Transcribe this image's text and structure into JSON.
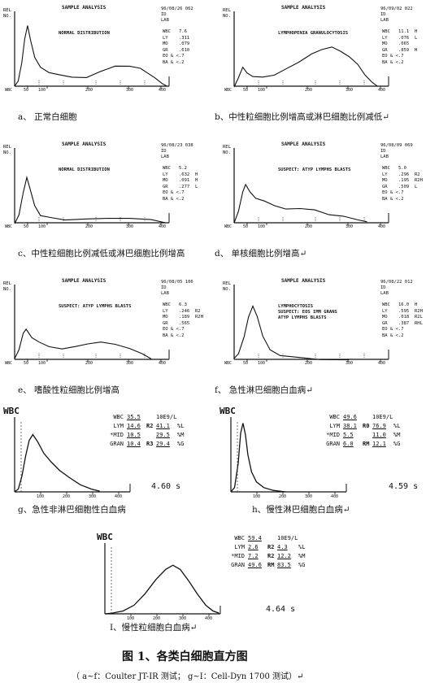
{
  "figure_title": "图 1、各类白细胞直方图",
  "note": "（ a~f：Coulter JT-IR 测试；  g~I：Cell-Dyn 1700 测试）↵",
  "coulter": [
    {
      "id": "a",
      "caption": "a、 正常白细胞",
      "title": "SAMPLE ANALYSIS",
      "date": "96/08/26 062",
      "header": [
        "REL",
        "NO."
      ],
      "idlab": [
        "ID",
        "LAB"
      ],
      "msg": [
        "NORMAL DISTRIBUTION"
      ],
      "params": [
        [
          "WBC",
          "7.6",
          ""
        ],
        [
          "LY",
          ".311",
          ""
        ],
        [
          "MO",
          ".079",
          ""
        ],
        [
          "GR",
          ".610",
          ""
        ],
        [
          "EO & <",
          ".7",
          ""
        ],
        [
          "BA & <",
          ".2",
          ""
        ]
      ],
      "ticks": [
        "WBC",
        "50",
        "100",
        "200",
        "300",
        "400"
      ],
      "curve": [
        [
          0,
          0
        ],
        [
          5,
          8
        ],
        [
          10,
          30
        ],
        [
          14,
          62
        ],
        [
          18,
          80
        ],
        [
          22,
          62
        ],
        [
          28,
          38
        ],
        [
          36,
          24
        ],
        [
          48,
          18
        ],
        [
          62,
          14
        ],
        [
          80,
          11
        ],
        [
          100,
          12
        ],
        [
          120,
          20
        ],
        [
          140,
          26
        ],
        [
          160,
          28
        ],
        [
          175,
          25
        ],
        [
          185,
          18
        ],
        [
          195,
          10
        ],
        [
          205,
          4
        ],
        [
          212,
          1
        ]
      ]
    },
    {
      "id": "b",
      "caption": "b、中性粒细胞比例增高或淋巴细胞比例减低↵",
      "title": "SAMPLE ANALYSIS",
      "date": "96/09/02 022",
      "header": [
        "REL",
        "NO."
      ],
      "idlab": [
        "ID",
        "LAB"
      ],
      "msg": [
        "LYMPHOPENIA GRANULOCYTOSIS"
      ],
      "params": [
        [
          "WBC",
          "11.1",
          "H"
        ],
        [
          "LY",
          ".076",
          "L"
        ],
        [
          "MO",
          ".065",
          ""
        ],
        [
          "GR",
          ".859",
          "H"
        ],
        [
          "EO & <",
          ".7",
          ""
        ],
        [
          "BA & <",
          ".2",
          ""
        ]
      ],
      "ticks": [
        "WBC",
        "50",
        "100",
        "200",
        "300",
        "400"
      ],
      "curve": [
        [
          0,
          0
        ],
        [
          6,
          10
        ],
        [
          12,
          26
        ],
        [
          18,
          18
        ],
        [
          26,
          14
        ],
        [
          40,
          12
        ],
        [
          56,
          16
        ],
        [
          72,
          22
        ],
        [
          90,
          32
        ],
        [
          108,
          44
        ],
        [
          122,
          50
        ],
        [
          136,
          52
        ],
        [
          148,
          48
        ],
        [
          160,
          40
        ],
        [
          172,
          28
        ],
        [
          182,
          16
        ],
        [
          192,
          6
        ],
        [
          200,
          1
        ]
      ]
    },
    {
      "id": "c",
      "caption": "c、中性粒细胞比例减低或淋巴细胞比例增高",
      "title": "SAMPLE ANALYSIS",
      "date": "96/08/23 038",
      "header": [
        "REL",
        "NO."
      ],
      "idlab": [
        "ID",
        "LAB"
      ],
      "msg": [
        "NORMAL DISTRIBUTION"
      ],
      "params": [
        [
          "WBC",
          "5.2",
          ""
        ],
        [
          "LY",
          ".632",
          "H"
        ],
        [
          "MO",
          ".091",
          "H"
        ],
        [
          "GR",
          ".277",
          "L"
        ],
        [
          "EO & <",
          ".7",
          ""
        ],
        [
          "BA & <",
          ".2",
          ""
        ]
      ],
      "ticks": [
        "WBC",
        "50",
        "100",
        "200",
        "300",
        "400"
      ],
      "curve": [
        [
          0,
          0
        ],
        [
          6,
          10
        ],
        [
          12,
          40
        ],
        [
          17,
          60
        ],
        [
          22,
          45
        ],
        [
          28,
          22
        ],
        [
          36,
          10
        ],
        [
          50,
          6
        ],
        [
          70,
          5
        ],
        [
          100,
          6
        ],
        [
          130,
          6
        ],
        [
          160,
          5
        ],
        [
          190,
          3
        ],
        [
          210,
          1
        ]
      ]
    },
    {
      "id": "d",
      "caption": "d、 单核细胞比例增高↵",
      "title": "SAMPLE ANALYSIS",
      "date": "96/08/09 069",
      "header": [
        "REL",
        "NO."
      ],
      "idlab": [
        "ID",
        "LAB"
      ],
      "msg": [
        "SUSPECT: ATYP LYMPHS BLASTS"
      ],
      "params": [
        [
          "WBC",
          "5.0",
          ""
        ],
        [
          "LY",
          ".296",
          "R2"
        ],
        [
          "MO",
          ".195",
          "R2H"
        ],
        [
          "GR",
          ".509",
          "L"
        ],
        [
          "EO & <",
          ".7",
          ""
        ],
        [
          "BA & <",
          ".2",
          ""
        ]
      ],
      "ticks": [
        "WBC",
        "50",
        "100",
        "200",
        "300",
        "400"
      ],
      "curve": [
        [
          0,
          0
        ],
        [
          6,
          16
        ],
        [
          12,
          40
        ],
        [
          16,
          50
        ],
        [
          22,
          42
        ],
        [
          30,
          32
        ],
        [
          42,
          28
        ],
        [
          56,
          22
        ],
        [
          72,
          18
        ],
        [
          92,
          20
        ],
        [
          112,
          16
        ],
        [
          132,
          12
        ],
        [
          152,
          8
        ],
        [
          172,
          4
        ],
        [
          185,
          1
        ]
      ]
    },
    {
      "id": "e",
      "caption": "e、 嗜酸性粒细胞比例增高",
      "title": "SAMPLE ANALYSIS",
      "date": "96/08/05 106",
      "header": [
        "REL",
        "NO."
      ],
      "idlab": [
        "ID",
        "LAB"
      ],
      "msg": [
        "SUSPECT: ATYP LYMPHS BLASTS"
      ],
      "params": [
        [
          "WBC",
          "6.3",
          ""
        ],
        [
          "LY",
          ".246",
          "R2"
        ],
        [
          "MO",
          ".189",
          "R2H"
        ],
        [
          "GR",
          ".565",
          ""
        ],
        [
          "EO & <",
          ".7",
          ""
        ],
        [
          "BA & <",
          ".2",
          ""
        ]
      ],
      "ticks": [
        "WBC",
        "50",
        "100",
        "200",
        "300",
        "400"
      ],
      "curve": [
        [
          0,
          0
        ],
        [
          6,
          14
        ],
        [
          12,
          34
        ],
        [
          16,
          40
        ],
        [
          24,
          30
        ],
        [
          34,
          22
        ],
        [
          48,
          16
        ],
        [
          66,
          14
        ],
        [
          84,
          18
        ],
        [
          102,
          22
        ],
        [
          120,
          24
        ],
        [
          140,
          20
        ],
        [
          160,
          14
        ],
        [
          178,
          6
        ],
        [
          190,
          1
        ]
      ]
    },
    {
      "id": "f",
      "caption": "f、 急性淋巴细胞白血病↵",
      "title": "SAMPLE ANALYSIS",
      "date": "96/08/22 012",
      "header": [
        "REL",
        "NO."
      ],
      "idlab": [
        "ID",
        "LAB"
      ],
      "msg": [
        "LYMPHOCYTOSIS",
        "SUSPECT: EOS IMM GRANS",
        "ATYP LYMPHS BLASTS"
      ],
      "params": [
        [
          "WBC",
          "16.0",
          "H"
        ],
        [
          "LY",
          ".595",
          "R2H"
        ],
        [
          "MO",
          ".018",
          "R2L"
        ],
        [
          "GR",
          ".387",
          "RHL"
        ],
        [
          "EO & <",
          ".7",
          ""
        ],
        [
          "BA & <",
          ".2",
          ""
        ]
      ],
      "ticks": [
        "WBC",
        "50",
        "100",
        "200",
        "300",
        "400"
      ],
      "curve": [
        [
          0,
          0
        ],
        [
          6,
          8
        ],
        [
          14,
          30
        ],
        [
          20,
          58
        ],
        [
          26,
          70
        ],
        [
          32,
          58
        ],
        [
          40,
          30
        ],
        [
          50,
          14
        ],
        [
          64,
          6
        ],
        [
          84,
          3
        ],
        [
          120,
          1
        ],
        [
          160,
          0
        ]
      ]
    }
  ],
  "celldyn": [
    {
      "id": "g",
      "caption": "g、急性非淋巴细胞性白血病",
      "axis_label": "WBC",
      "rows": [
        [
          "WBC",
          "35.5",
          "",
          "10E9/L",
          ""
        ],
        [
          "LYM",
          "14.6",
          "R2",
          "41.1",
          "%L"
        ],
        [
          "*MID",
          "10.5",
          "",
          "29.5",
          "%M"
        ],
        [
          "GRAN",
          "10.4",
          "R3",
          "29.4",
          "%G"
        ]
      ],
      "time": "4.60 s",
      "ticks": [
        "100",
        "200",
        "300",
        "400"
      ],
      "curve": [
        [
          0,
          0
        ],
        [
          6,
          4
        ],
        [
          12,
          22
        ],
        [
          18,
          50
        ],
        [
          24,
          72
        ],
        [
          30,
          80
        ],
        [
          38,
          70
        ],
        [
          48,
          54
        ],
        [
          60,
          42
        ],
        [
          74,
          30
        ],
        [
          90,
          20
        ],
        [
          108,
          10
        ],
        [
          126,
          4
        ],
        [
          140,
          1
        ]
      ]
    },
    {
      "id": "h",
      "caption": "h、慢性淋巴细胞白血病↵",
      "axis_label": "WBC",
      "rows": [
        [
          "WBC",
          "49.6",
          "",
          "10E9/L",
          ""
        ],
        [
          "LYM",
          "38.1",
          "R0",
          "76.9",
          "%L"
        ],
        [
          "*MID",
          "5.5",
          "",
          "11.0",
          "%M"
        ],
        [
          "GRAN",
          "6.0",
          "RM",
          "12.1",
          "%G"
        ]
      ],
      "time": "4.59 s",
      "ticks": [
        "100",
        "200",
        "300",
        "400"
      ],
      "curve": [
        [
          0,
          0
        ],
        [
          6,
          6
        ],
        [
          12,
          40
        ],
        [
          16,
          82
        ],
        [
          20,
          96
        ],
        [
          24,
          80
        ],
        [
          28,
          52
        ],
        [
          34,
          28
        ],
        [
          42,
          14
        ],
        [
          54,
          6
        ],
        [
          70,
          2
        ],
        [
          90,
          0
        ]
      ]
    },
    {
      "id": "i",
      "caption": "I、慢性粒细胞白血病↵",
      "axis_label": "WBC",
      "rows": [
        [
          "WBC",
          "59.4",
          "",
          "10E9/L",
          ""
        ],
        [
          "LYM",
          "2.6",
          "R2",
          "4.3",
          "%L"
        ],
        [
          "*MID",
          "7.2",
          "R2",
          "12.2",
          "%M"
        ],
        [
          "GRAN",
          "49.6",
          "RM",
          "83.5",
          "%G"
        ]
      ],
      "time": "4.64 s",
      "ticks": [
        "100",
        "200",
        "300",
        "400"
      ],
      "curve": [
        [
          0,
          0
        ],
        [
          12,
          1
        ],
        [
          30,
          4
        ],
        [
          48,
          12
        ],
        [
          66,
          28
        ],
        [
          84,
          48
        ],
        [
          100,
          62
        ],
        [
          112,
          68
        ],
        [
          124,
          62
        ],
        [
          138,
          46
        ],
        [
          152,
          28
        ],
        [
          166,
          12
        ],
        [
          178,
          4
        ],
        [
          188,
          1
        ]
      ]
    }
  ]
}
